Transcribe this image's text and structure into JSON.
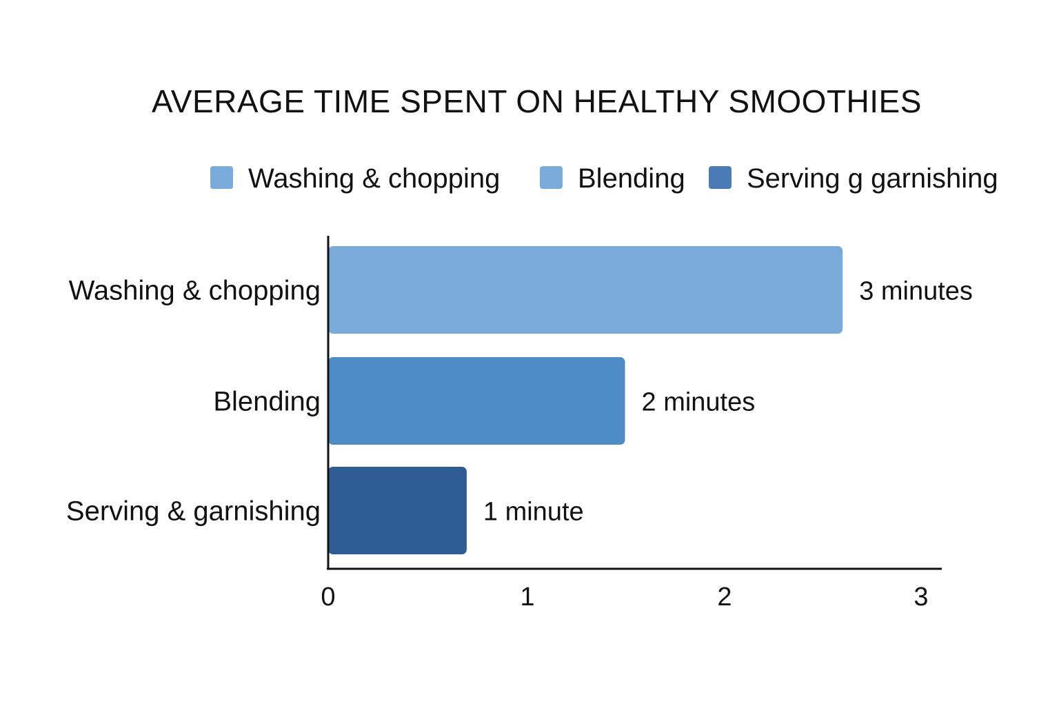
{
  "chart_data": {
    "type": "bar",
    "orientation": "horizontal",
    "title": "AVERAGE TIME SPENT ON HEALTHY SMOOTHIES",
    "xlabel": "",
    "ylabel": "",
    "categories": [
      "Washing & chopping",
      "Blending",
      "Serving & garnishing"
    ],
    "values": [
      2.6,
      1.5,
      0.7
    ],
    "data_labels": [
      "3 minutes",
      "2 minutes",
      "1 minute"
    ],
    "xlim": [
      0,
      3.1
    ],
    "x_ticks": [
      0,
      1,
      2,
      3
    ],
    "grid": false,
    "legend_position": "top",
    "legend": [
      {
        "label": "Washing & chopping",
        "color": "#7aaad9"
      },
      {
        "label": "Blending",
        "color": "#7aaad9"
      },
      {
        "label": "Serving g garnishing",
        "color": "#4a7bb5"
      }
    ],
    "bar_colors": [
      "#7aaad9",
      "#4f8bc4",
      "#2f5c93"
    ]
  }
}
